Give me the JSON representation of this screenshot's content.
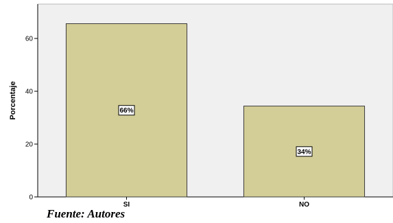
{
  "chart_data": {
    "type": "bar",
    "title": "",
    "xlabel": "",
    "ylabel": "Porcentaje",
    "categories": [
      "SI",
      "NO"
    ],
    "values": [
      65.6,
      34.4
    ],
    "data_labels": [
      "66%",
      "34%"
    ],
    "yticks": [
      0,
      20,
      40,
      60
    ],
    "ylim": [
      0,
      73
    ],
    "grid": false,
    "legend": "none",
    "colors": {
      "bar_fill": "#d3ce97",
      "bar_stroke": "#3a3a3a",
      "plot_background": "#f0f0f0",
      "plot_border": "#b9b9b9"
    }
  },
  "footer": {
    "source": "Fuente: Autores"
  }
}
